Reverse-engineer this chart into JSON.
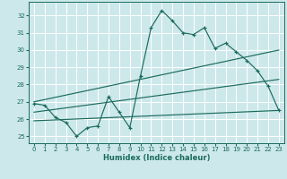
{
  "xlabel": "Humidex (Indice chaleur)",
  "ylabel": "",
  "bg_color": "#cde8ea",
  "grid_color": "#ffffff",
  "line_color": "#1a6b5e",
  "xlim": [
    -0.5,
    23.5
  ],
  "ylim": [
    24.6,
    32.8
  ],
  "yticks": [
    25,
    26,
    27,
    28,
    29,
    30,
    31,
    32
  ],
  "xticks": [
    0,
    1,
    2,
    3,
    4,
    5,
    6,
    7,
    8,
    9,
    10,
    11,
    12,
    13,
    14,
    15,
    16,
    17,
    18,
    19,
    20,
    21,
    22,
    23
  ],
  "main_line_x": [
    0,
    1,
    2,
    3,
    4,
    5,
    6,
    7,
    8,
    9,
    10,
    11,
    12,
    13,
    14,
    15,
    16,
    17,
    18,
    19,
    20,
    21,
    22,
    23
  ],
  "main_line_y": [
    26.9,
    26.8,
    26.1,
    25.8,
    25.0,
    25.5,
    25.6,
    27.3,
    26.4,
    25.5,
    28.5,
    31.3,
    32.3,
    31.7,
    31.0,
    30.9,
    31.3,
    30.1,
    30.4,
    29.9,
    29.4,
    28.8,
    27.9,
    26.5
  ],
  "upper_line_x": [
    0,
    23
  ],
  "upper_line_y": [
    27.0,
    30.0
  ],
  "lower_line_x": [
    0,
    23
  ],
  "lower_line_y": [
    25.9,
    26.5
  ],
  "mid_line_x": [
    0,
    23
  ],
  "mid_line_y": [
    26.4,
    28.3
  ],
  "fontsize_ticks": 5.0,
  "fontsize_xlabel": 6.0
}
